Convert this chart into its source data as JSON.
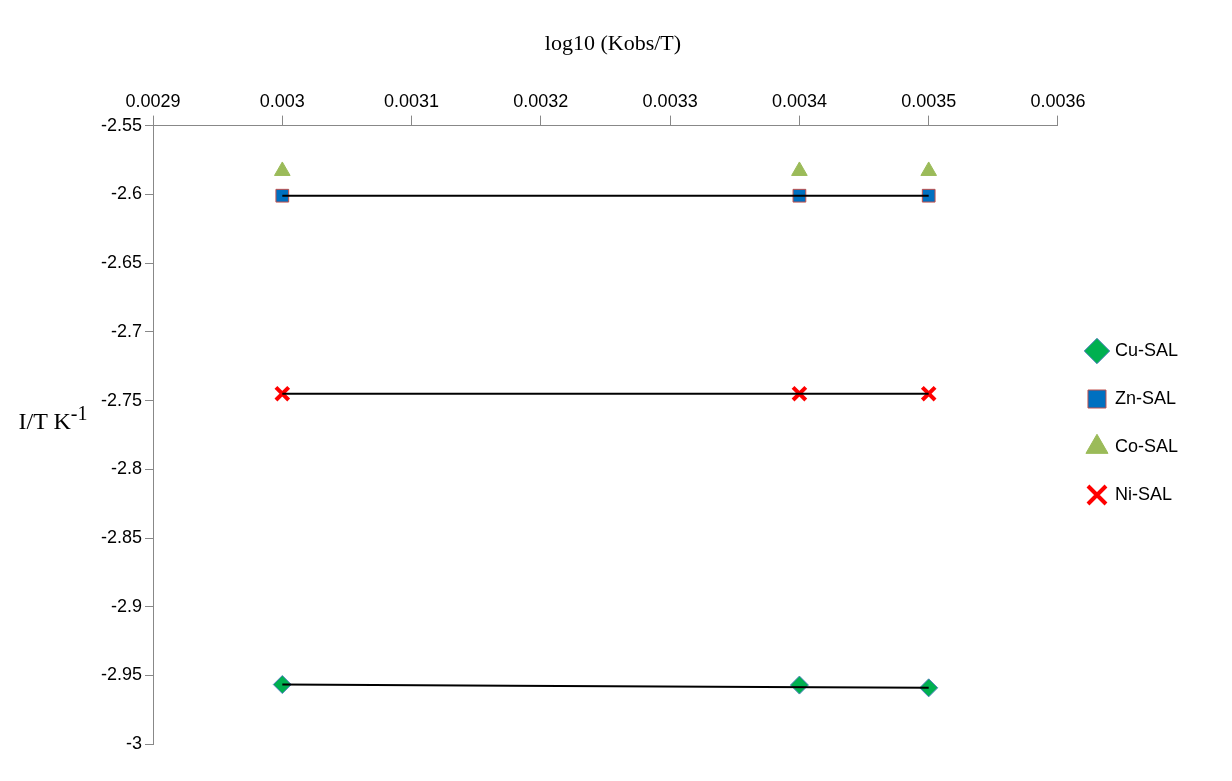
{
  "chart_data": {
    "type": "scatter",
    "title": "log10 (Kobs/T)",
    "ylabel": "I/T K$^{-1}$",
    "xlim": [
      0.0029,
      0.0036
    ],
    "xticks": [
      0.0029,
      0.003,
      0.0031,
      0.0032,
      0.0033,
      0.0034,
      0.0035,
      0.0036
    ],
    "ylim": [
      -3,
      -2.55
    ],
    "yticks": [
      -3,
      -2.95,
      -2.9,
      -2.85,
      -2.8,
      -2.75,
      -2.7,
      -2.65,
      -2.6,
      -2.55
    ],
    "grid": false,
    "legend": "right",
    "series": [
      {
        "name": "Cu-SAL",
        "color": "#00b050",
        "marker": "diamond",
        "x": [
          0.003,
          0.0034,
          0.0035
        ],
        "values": [
          -2.9566,
          -2.957,
          -2.959
        ]
      },
      {
        "name": "Zn-SAL",
        "color": "#0070c0",
        "marker": "square",
        "x": [
          0.003,
          0.0034,
          0.0035
        ],
        "values": [
          -2.601,
          -2.601,
          -2.601
        ]
      },
      {
        "name": "Co-SAL",
        "color": "#9bbb59",
        "marker": "triangle",
        "x": [
          0.003,
          0.0034,
          0.0035
        ],
        "values": [
          -2.583,
          -2.583,
          -2.583
        ]
      },
      {
        "name": "Ni-SAL",
        "color": "#ff0000",
        "marker": "cross",
        "x": [
          0.003,
          0.0034,
          0.0035
        ],
        "values": [
          -2.745,
          -2.745,
          -2.745
        ]
      },
      {
        "type": "line",
        "color": "#000000",
        "marker": "none",
        "x": [
          0.003,
          0.0035
        ],
        "values": [
          -2.9566,
          -2.959
        ]
      },
      {
        "type": "line",
        "color": "#000000",
        "marker": "none",
        "x": [
          0.003,
          0.0035
        ],
        "values": [
          -2.601,
          -2.601
        ]
      },
      {
        "type": "line",
        "color": "#000000",
        "marker": "none",
        "x": [
          0.003,
          0.0035
        ],
        "values": [
          -2.745,
          -2.745
        ]
      }
    ]
  }
}
